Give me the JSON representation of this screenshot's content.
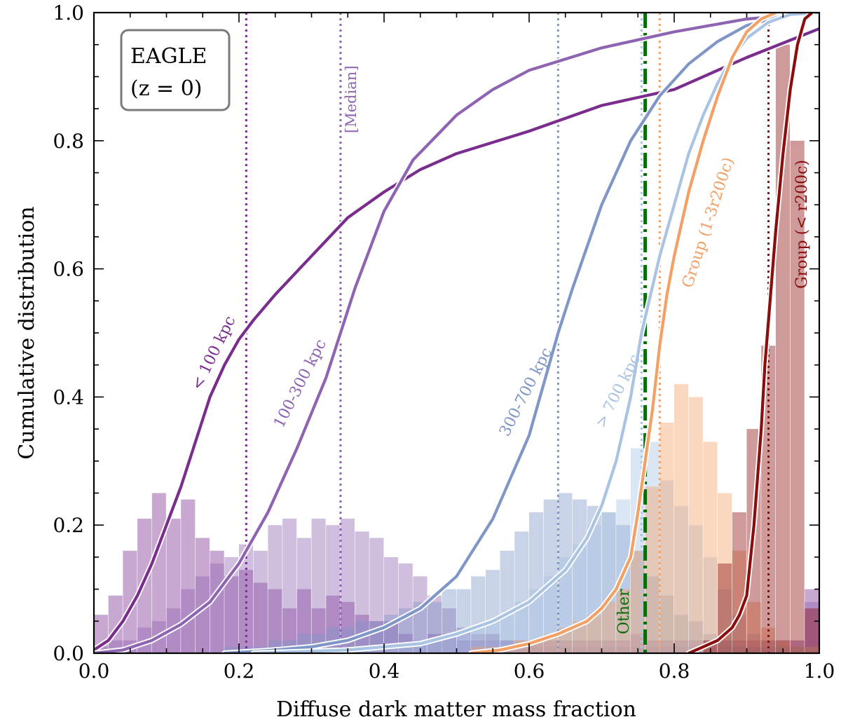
{
  "chart_data": {
    "type": "line",
    "title": "",
    "xlabel": "Diffuse dark matter mass fraction",
    "ylabel": "Cumulative distribution",
    "xlim": [
      0.0,
      1.0
    ],
    "ylim": [
      0.0,
      1.0
    ],
    "xticks": [
      0.0,
      0.2,
      0.4,
      0.6,
      0.8,
      1.0
    ],
    "yticks": [
      0.0,
      0.2,
      0.4,
      0.6,
      0.8,
      1.0
    ],
    "xtick_labels": [
      "0.0",
      "0.2",
      "0.4",
      "0.6",
      "0.8",
      "1.0"
    ],
    "ytick_labels": [
      "0.0",
      "0.2",
      "0.4",
      "0.6",
      "0.8",
      "1.0"
    ],
    "legend_box": {
      "line1": "EAGLE",
      "line2": "(z = 0)"
    },
    "median_label": "[Median]",
    "other_label": "Other",
    "other_median": 0.76,
    "colors": {
      "lt100": "#7b2d8e",
      "c100_300": "#8e64b2",
      "c300_700": "#7f96c6",
      "gt700": "#a8c4e2",
      "group_outer": "#f2a066",
      "group_inner": "#8b0e0e",
      "other": "#0b6b0b"
    },
    "bin_width": 0.02,
    "series": [
      {
        "name": "< 100 kpc",
        "key": "lt100",
        "median": 0.21,
        "cdf": [
          [
            0,
            0.005
          ],
          [
            0.02,
            0.02
          ],
          [
            0.04,
            0.05
          ],
          [
            0.06,
            0.09
          ],
          [
            0.08,
            0.14
          ],
          [
            0.1,
            0.2
          ],
          [
            0.12,
            0.26
          ],
          [
            0.14,
            0.33
          ],
          [
            0.16,
            0.4
          ],
          [
            0.18,
            0.45
          ],
          [
            0.2,
            0.49
          ],
          [
            0.22,
            0.52
          ],
          [
            0.25,
            0.56
          ],
          [
            0.3,
            0.62
          ],
          [
            0.35,
            0.68
          ],
          [
            0.4,
            0.72
          ],
          [
            0.45,
            0.755
          ],
          [
            0.5,
            0.78
          ],
          [
            0.6,
            0.815
          ],
          [
            0.7,
            0.855
          ],
          [
            0.8,
            0.88
          ],
          [
            0.9,
            0.93
          ],
          [
            1.0,
            0.975
          ]
        ],
        "hist": [
          0.06,
          0.09,
          0.16,
          0.21,
          0.25,
          0.21,
          0.24,
          0.18,
          0.16,
          0.12,
          0.13,
          0.11,
          0.1,
          0.07,
          0.1,
          0.07,
          0.09,
          0.08,
          0.06,
          0.05,
          0.05,
          0.03,
          0.02,
          0.03,
          0.03,
          0.02,
          0.02,
          0.03,
          0.02,
          0.02,
          0.02,
          0.02,
          0.02,
          0.02,
          0.02,
          0.02,
          0.02,
          0.03,
          0.02,
          0.02,
          0.02,
          0.02,
          0.02,
          0.02,
          0.02,
          0.02,
          0.02,
          0.02,
          0.02,
          0.1
        ]
      },
      {
        "name": "100-300 kpc",
        "key": "c100_300",
        "median": 0.34,
        "cdf": [
          [
            0,
            0
          ],
          [
            0.04,
            0.005
          ],
          [
            0.08,
            0.02
          ],
          [
            0.12,
            0.045
          ],
          [
            0.16,
            0.08
          ],
          [
            0.2,
            0.14
          ],
          [
            0.24,
            0.22
          ],
          [
            0.28,
            0.32
          ],
          [
            0.32,
            0.43
          ],
          [
            0.34,
            0.5
          ],
          [
            0.36,
            0.57
          ],
          [
            0.4,
            0.69
          ],
          [
            0.44,
            0.77
          ],
          [
            0.5,
            0.84
          ],
          [
            0.55,
            0.88
          ],
          [
            0.6,
            0.91
          ],
          [
            0.7,
            0.945
          ],
          [
            0.8,
            0.97
          ],
          [
            0.9,
            0.99
          ],
          [
            1.0,
            1.0
          ]
        ],
        "hist": [
          0.01,
          0.02,
          0.02,
          0.04,
          0.05,
          0.07,
          0.1,
          0.12,
          0.14,
          0.15,
          0.17,
          0.16,
          0.2,
          0.21,
          0.18,
          0.21,
          0.2,
          0.21,
          0.19,
          0.18,
          0.15,
          0.14,
          0.12,
          0.09,
          0.07,
          0.04,
          0.03,
          0.02,
          0.02,
          0.01,
          0.01,
          0.01,
          0.01,
          0.01,
          0.01,
          0.01,
          0.01,
          0.01,
          0.01,
          0.01,
          0.01,
          0.01,
          0.01,
          0.01,
          0.01,
          0.01,
          0.01,
          0.01,
          0.01,
          0.08
        ]
      },
      {
        "name": "300-700 kpc",
        "key": "c300_700",
        "median": 0.64,
        "cdf": [
          [
            0.18,
            0
          ],
          [
            0.25,
            0.005
          ],
          [
            0.3,
            0.01
          ],
          [
            0.35,
            0.02
          ],
          [
            0.4,
            0.04
          ],
          [
            0.45,
            0.07
          ],
          [
            0.5,
            0.12
          ],
          [
            0.55,
            0.21
          ],
          [
            0.6,
            0.34
          ],
          [
            0.62,
            0.42
          ],
          [
            0.64,
            0.5
          ],
          [
            0.66,
            0.57
          ],
          [
            0.7,
            0.7
          ],
          [
            0.74,
            0.8
          ],
          [
            0.78,
            0.87
          ],
          [
            0.82,
            0.92
          ],
          [
            0.86,
            0.955
          ],
          [
            0.9,
            0.98
          ],
          [
            0.95,
            0.995
          ],
          [
            1.0,
            1.0
          ]
        ],
        "hist": [
          0,
          0,
          0,
          0,
          0,
          0,
          0,
          0,
          0,
          0.01,
          0.01,
          0.01,
          0.02,
          0.02,
          0.03,
          0.03,
          0.04,
          0.04,
          0.05,
          0.05,
          0.06,
          0.07,
          0.08,
          0.08,
          0.1,
          0.1,
          0.12,
          0.13,
          0.16,
          0.19,
          0.22,
          0.24,
          0.25,
          0.24,
          0.23,
          0.22,
          0.2,
          0.16,
          0.12,
          0.09,
          0.06,
          0.05,
          0.03,
          0.02,
          0.01,
          0.01,
          0.01,
          0.01,
          0.01,
          0.01
        ]
      },
      {
        "name": "> 700 kpc",
        "key": "gt700",
        "median": 0.755,
        "cdf": [
          [
            0.22,
            0
          ],
          [
            0.35,
            0.005
          ],
          [
            0.45,
            0.015
          ],
          [
            0.5,
            0.03
          ],
          [
            0.55,
            0.05
          ],
          [
            0.6,
            0.08
          ],
          [
            0.65,
            0.13
          ],
          [
            0.68,
            0.18
          ],
          [
            0.7,
            0.23
          ],
          [
            0.72,
            0.3
          ],
          [
            0.74,
            0.4
          ],
          [
            0.755,
            0.5
          ],
          [
            0.78,
            0.62
          ],
          [
            0.8,
            0.7
          ],
          [
            0.82,
            0.78
          ],
          [
            0.84,
            0.84
          ],
          [
            0.86,
            0.89
          ],
          [
            0.88,
            0.93
          ],
          [
            0.9,
            0.96
          ],
          [
            0.93,
            0.985
          ],
          [
            0.96,
            0.997
          ],
          [
            1.0,
            1.0
          ]
        ],
        "hist": [
          0,
          0,
          0,
          0,
          0,
          0,
          0,
          0,
          0,
          0,
          0,
          0,
          0,
          0,
          0,
          0,
          0,
          0,
          0.01,
          0.01,
          0.01,
          0.01,
          0.02,
          0.02,
          0.03,
          0.03,
          0.04,
          0.05,
          0.06,
          0.08,
          0.1,
          0.12,
          0.15,
          0.17,
          0.2,
          0.22,
          0.24,
          0.32,
          0.33,
          0.27,
          0.23,
          0.2,
          0.15,
          0.1,
          0.06,
          0.03,
          0.02,
          0.01,
          0.01,
          0.01
        ]
      },
      {
        "name": "Group (1-3r200c)",
        "key": "group_outer",
        "median": 0.78,
        "cdf": [
          [
            0.52,
            0
          ],
          [
            0.56,
            0.005
          ],
          [
            0.6,
            0.015
          ],
          [
            0.64,
            0.03
          ],
          [
            0.68,
            0.05
          ],
          [
            0.7,
            0.07
          ],
          [
            0.72,
            0.1
          ],
          [
            0.74,
            0.15
          ],
          [
            0.75,
            0.22
          ],
          [
            0.76,
            0.3
          ],
          [
            0.77,
            0.38
          ],
          [
            0.78,
            0.48
          ],
          [
            0.79,
            0.56
          ],
          [
            0.8,
            0.62
          ],
          [
            0.82,
            0.72
          ],
          [
            0.84,
            0.8
          ],
          [
            0.86,
            0.87
          ],
          [
            0.88,
            0.93
          ],
          [
            0.9,
            0.97
          ],
          [
            0.92,
            0.99
          ],
          [
            0.94,
            1.0
          ]
        ],
        "hist": [
          0,
          0,
          0,
          0,
          0,
          0,
          0,
          0,
          0,
          0,
          0,
          0,
          0,
          0,
          0,
          0,
          0,
          0,
          0,
          0,
          0,
          0,
          0,
          0,
          0,
          0,
          0.01,
          0.01,
          0.01,
          0.02,
          0.02,
          0.03,
          0.04,
          0.05,
          0.06,
          0.08,
          0.1,
          0.16,
          0.26,
          0.36,
          0.42,
          0.4,
          0.33,
          0.25,
          0.16,
          0.08,
          0.04,
          0.02,
          0.01,
          0.01
        ]
      },
      {
        "name": "Group (< r200c)",
        "key": "group_inner",
        "median": 0.93,
        "cdf": [
          [
            0.82,
            0
          ],
          [
            0.84,
            0.01
          ],
          [
            0.86,
            0.02
          ],
          [
            0.88,
            0.04
          ],
          [
            0.89,
            0.06
          ],
          [
            0.9,
            0.09
          ],
          [
            0.91,
            0.2
          ],
          [
            0.92,
            0.35
          ],
          [
            0.925,
            0.45
          ],
          [
            0.93,
            0.52
          ],
          [
            0.94,
            0.66
          ],
          [
            0.95,
            0.78
          ],
          [
            0.96,
            0.88
          ],
          [
            0.97,
            0.95
          ],
          [
            0.98,
            0.99
          ],
          [
            0.99,
            1.0
          ]
        ],
        "hist": [
          0,
          0,
          0,
          0,
          0,
          0,
          0,
          0,
          0,
          0,
          0,
          0,
          0,
          0,
          0,
          0,
          0,
          0,
          0,
          0,
          0,
          0,
          0,
          0,
          0,
          0,
          0,
          0,
          0,
          0,
          0,
          0,
          0,
          0,
          0,
          0,
          0,
          0,
          0,
          0,
          0,
          0,
          0.02,
          0.14,
          0.22,
          0.35,
          0.48,
          0.95,
          0.8,
          0.07
        ]
      }
    ],
    "labels": [
      {
        "key": "lt100",
        "text": "< 100 kpc"
      },
      {
        "key": "c100_300",
        "text": "100-300 kpc"
      },
      {
        "key": "c300_700",
        "text": "300-700 kpc"
      },
      {
        "key": "gt700",
        "text": "> 700 kpc"
      },
      {
        "key": "group_outer",
        "text": "Group (1-3r200c)"
      },
      {
        "key": "group_inner",
        "text": "Group (< r200c)"
      }
    ]
  }
}
